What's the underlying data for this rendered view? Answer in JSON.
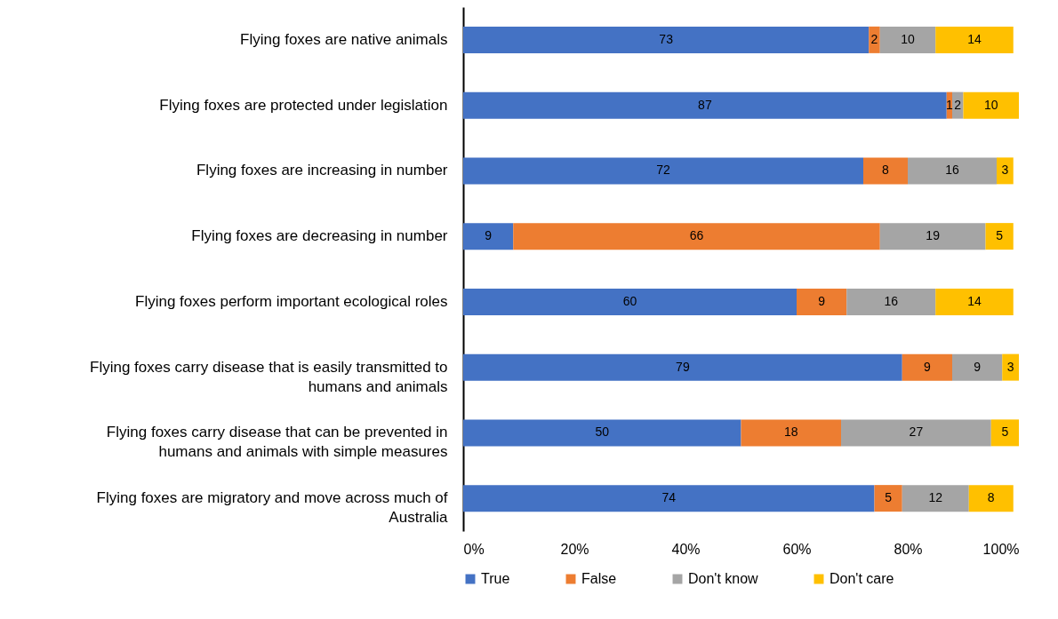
{
  "chart_data": {
    "type": "bar",
    "orientation": "horizontal",
    "stacked": true,
    "data_labels": true,
    "grid": false,
    "legend": "bottom",
    "categories": [
      "Flying foxes are native animals",
      "Flying foxes are protected under legislation",
      "Flying foxes are increasing in number",
      "Flying foxes are decreasing in number",
      "Flying foxes perform important ecological roles",
      "Flying foxes carry disease that is easily transmitted to humans and animals",
      "Flying foxes carry disease that can be prevented in humans and animals with simple measures",
      "Flying foxes are migratory and move across much of Australia"
    ],
    "xlim": [
      0,
      100
    ],
    "xticks": [
      {
        "value": 0,
        "label": "0%"
      },
      {
        "value": 20,
        "label": "20%"
      },
      {
        "value": 40,
        "label": "40%"
      },
      {
        "value": 60,
        "label": "60%"
      },
      {
        "value": 80,
        "label": "80%"
      },
      {
        "value": 100,
        "label": "100%"
      }
    ],
    "series": [
      {
        "name": "True",
        "color": "#4472c4",
        "values": [
          73,
          87,
          72,
          9,
          60,
          79,
          50,
          74
        ]
      },
      {
        "name": "False",
        "color": "#ed7d31",
        "values": [
          2,
          1,
          8,
          66,
          9,
          9,
          18,
          5
        ]
      },
      {
        "name": "Don't know",
        "color": "#a5a5a5",
        "values": [
          10,
          2,
          16,
          19,
          16,
          9,
          27,
          12
        ]
      },
      {
        "name": "Don't care",
        "color": "#ffc000",
        "values": [
          14,
          10,
          3,
          5,
          14,
          3,
          5,
          8
        ]
      }
    ]
  }
}
